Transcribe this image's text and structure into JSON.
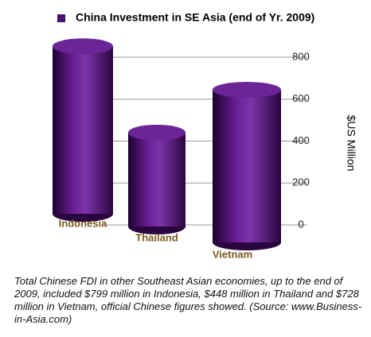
{
  "chart_data": {
    "type": "bar",
    "legend": "China Investment in SE Asia (end of Yr. 2009)",
    "categories": [
      "Indonesia",
      "Thailand",
      "Vietnam"
    ],
    "values": [
      799,
      448,
      728
    ],
    "color": "#4b1070",
    "y_label": "$US Million",
    "ylim": [
      0,
      800
    ],
    "yticks": [
      0,
      200,
      400,
      600,
      800
    ],
    "grid": true,
    "caption": "Total Chinese FDI in other Southeast Asian economies, up to the end of 2009, included $799 million in Indonesia, $448 million in Thailand and $728 million in Vietnam, official Chinese figures showed.  (Source: www.Business-in-Asia.com)"
  }
}
